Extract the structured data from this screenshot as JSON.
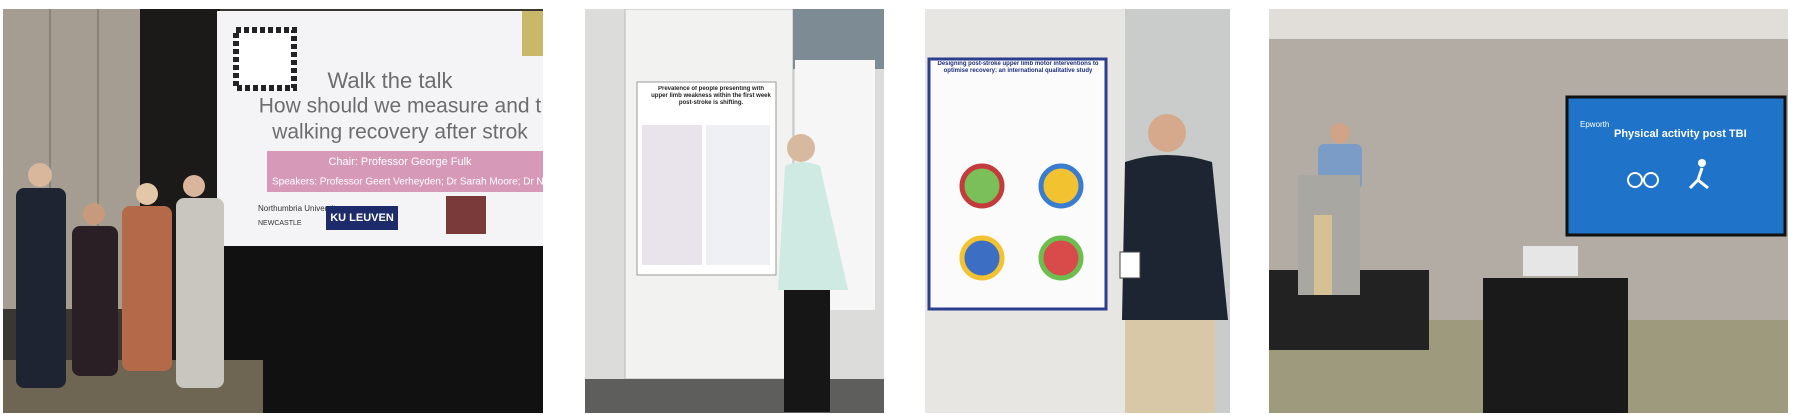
{
  "photos": [
    {
      "slide": {
        "title": "Walk the talk",
        "subtitle_line1": "How should we measure and t",
        "subtitle_line2": "walking recovery after strok",
        "chair": "Chair: Professor George Fulk",
        "speakers": "Speakers: Professor Geert Verheyden; Dr Sarah Moore; Dr N",
        "logo1": "Northumbria University",
        "logo1_sub": "NEWCASTLE",
        "logo2": "KU LEUVEN"
      }
    },
    {
      "poster": {
        "title": "Prevalence of people presenting with upper limb weakness within the first week post-stroke is shifting."
      }
    },
    {
      "poster": {
        "title": "Designing post-stroke upper limb motor interventions to optimise recovery: an international qualitative study"
      }
    },
    {
      "slide": {
        "logo": "Epworth",
        "title": "Physical activity post TBI"
      }
    }
  ]
}
